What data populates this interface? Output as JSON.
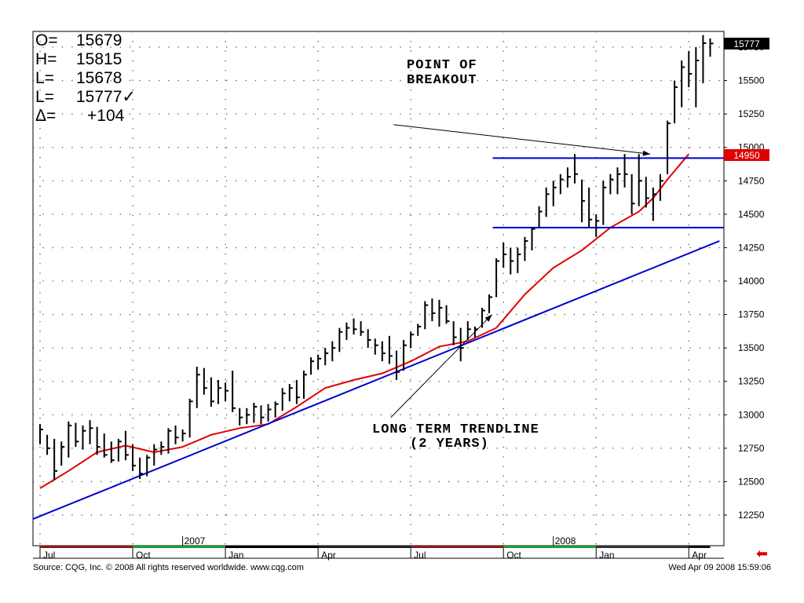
{
  "ohlc_readout": [
    {
      "label": "O=",
      "value": "15679"
    },
    {
      "label": "H=",
      "value": "15815"
    },
    {
      "label": "L=",
      "value": "15678"
    },
    {
      "label": "L=",
      "value": "15777✓"
    },
    {
      "label": "Δ=",
      "value": "+104"
    }
  ],
  "price_badges": {
    "last": "15777",
    "breakout": "14950"
  },
  "annotations": {
    "breakout_line1": "POINT OF",
    "breakout_line2": "BREAKOUT",
    "trend_line1": "LONG TERM TRENDLINE",
    "trend_line2": "(2 YEARS)"
  },
  "footer": {
    "source": "Source: CQG, Inc. © 2008 All rights reserved worldwide. www.cqg.com",
    "timestamp": "Wed Apr 09 2008 15:59:06"
  },
  "colors": {
    "bars": "#000000",
    "moving_average": "#e00000",
    "trendline": "#0000cc",
    "resistance": "#0000cc",
    "badge_breakout": "#e00000",
    "badge_last": "#000000",
    "nav_arrow": "#e00000"
  },
  "chart_data": {
    "type": "ohlc",
    "ylim": [
      12000,
      15950
    ],
    "grid": true,
    "price_axis_side": "right",
    "y_ticks": [
      12250,
      12500,
      12750,
      13000,
      13250,
      13500,
      13750,
      14000,
      14250,
      14500,
      14750,
      15000,
      15250,
      15500,
      15750
    ],
    "x_ticks": [
      {
        "label": "Jul",
        "week": 0
      },
      {
        "label": "Oct",
        "week": 13
      },
      {
        "label": "2007",
        "week": 20,
        "year": true
      },
      {
        "label": "Jan",
        "week": 26
      },
      {
        "label": "Apr",
        "week": 39
      },
      {
        "label": "Jul",
        "week": 52
      },
      {
        "label": "Oct",
        "week": 65
      },
      {
        "label": "2008",
        "week": 72,
        "year": true
      },
      {
        "label": "Jan",
        "week": 78
      },
      {
        "label": "Apr",
        "week": 91
      }
    ],
    "quarter_bands": [
      {
        "start": 0,
        "end": 13,
        "color": "#8b1a1a"
      },
      {
        "start": 13,
        "end": 26,
        "color": "#1a9e3a"
      },
      {
        "start": 26,
        "end": 39,
        "color": "#000000"
      },
      {
        "start": 39,
        "end": 52,
        "color": "#222222"
      },
      {
        "start": 52,
        "end": 65,
        "color": "#8b1a1a"
      },
      {
        "start": 65,
        "end": 78,
        "color": "#1a9e3a"
      },
      {
        "start": 78,
        "end": 91,
        "color": "#333333"
      },
      {
        "start": 91,
        "end": 94,
        "color": "#111111"
      }
    ],
    "weekly_bars": [
      {
        "h": 12930,
        "l": 12780,
        "c": 12890
      },
      {
        "h": 12850,
        "l": 12700,
        "c": 12750
      },
      {
        "h": 12820,
        "l": 12510,
        "c": 12580
      },
      {
        "h": 12800,
        "l": 12620,
        "c": 12760
      },
      {
        "h": 12950,
        "l": 12680,
        "c": 12920
      },
      {
        "h": 12940,
        "l": 12760,
        "c": 12800
      },
      {
        "h": 12920,
        "l": 12740,
        "c": 12880
      },
      {
        "h": 12960,
        "l": 12780,
        "c": 12900
      },
      {
        "h": 12910,
        "l": 12700,
        "c": 12760
      },
      {
        "h": 12860,
        "l": 12680,
        "c": 12700
      },
      {
        "h": 12800,
        "l": 12640,
        "c": 12660
      },
      {
        "h": 12820,
        "l": 12650,
        "c": 12800
      },
      {
        "h": 12880,
        "l": 12660,
        "c": 12700
      },
      {
        "h": 12780,
        "l": 12580,
        "c": 12620
      },
      {
        "h": 12680,
        "l": 12520,
        "c": 12560
      },
      {
        "h": 12700,
        "l": 12540,
        "c": 12680
      },
      {
        "h": 12780,
        "l": 12620,
        "c": 12740
      },
      {
        "h": 12800,
        "l": 12700,
        "c": 12760
      },
      {
        "h": 12900,
        "l": 12710,
        "c": 12880
      },
      {
        "h": 12920,
        "l": 12780,
        "c": 12830
      },
      {
        "h": 12890,
        "l": 12800,
        "c": 12860
      },
      {
        "h": 13120,
        "l": 12830,
        "c": 13100
      },
      {
        "h": 13360,
        "l": 13050,
        "c": 13300
      },
      {
        "h": 13350,
        "l": 13150,
        "c": 13200
      },
      {
        "h": 13280,
        "l": 13060,
        "c": 13100
      },
      {
        "h": 13260,
        "l": 13080,
        "c": 13200
      },
      {
        "h": 13240,
        "l": 13100,
        "c": 13180
      },
      {
        "h": 13330,
        "l": 13020,
        "c": 13050
      },
      {
        "h": 13050,
        "l": 12920,
        "c": 12980
      },
      {
        "h": 13050,
        "l": 12930,
        "c": 13000
      },
      {
        "h": 13090,
        "l": 12940,
        "c": 13060
      },
      {
        "h": 13070,
        "l": 12930,
        "c": 12980
      },
      {
        "h": 13080,
        "l": 12950,
        "c": 13040
      },
      {
        "h": 13100,
        "l": 12980,
        "c": 13080
      },
      {
        "h": 13200,
        "l": 13030,
        "c": 13160
      },
      {
        "h": 13230,
        "l": 13100,
        "c": 13200
      },
      {
        "h": 13260,
        "l": 13080,
        "c": 13130
      },
      {
        "h": 13330,
        "l": 13120,
        "c": 13300
      },
      {
        "h": 13430,
        "l": 13300,
        "c": 13400
      },
      {
        "h": 13450,
        "l": 13340,
        "c": 13420
      },
      {
        "h": 13500,
        "l": 13370,
        "c": 13460
      },
      {
        "h": 13550,
        "l": 13400,
        "c": 13500
      },
      {
        "h": 13650,
        "l": 13470,
        "c": 13620
      },
      {
        "h": 13690,
        "l": 13560,
        "c": 13650
      },
      {
        "h": 13720,
        "l": 13600,
        "c": 13640
      },
      {
        "h": 13700,
        "l": 13590,
        "c": 13620
      },
      {
        "h": 13640,
        "l": 13500,
        "c": 13560
      },
      {
        "h": 13570,
        "l": 13450,
        "c": 13520
      },
      {
        "h": 13550,
        "l": 13400,
        "c": 13460
      },
      {
        "h": 13590,
        "l": 13380,
        "c": 13440
      },
      {
        "h": 13480,
        "l": 13260,
        "c": 13320
      },
      {
        "h": 13560,
        "l": 13330,
        "c": 13520
      },
      {
        "h": 13620,
        "l": 13500,
        "c": 13600
      },
      {
        "h": 13680,
        "l": 13590,
        "c": 13660
      },
      {
        "h": 13850,
        "l": 13640,
        "c": 13820
      },
      {
        "h": 13870,
        "l": 13700,
        "c": 13760
      },
      {
        "h": 13860,
        "l": 13660,
        "c": 13800
      },
      {
        "h": 13820,
        "l": 13680,
        "c": 13700
      },
      {
        "h": 13700,
        "l": 13520,
        "c": 13580
      },
      {
        "h": 13650,
        "l": 13400,
        "c": 13500
      },
      {
        "h": 13700,
        "l": 13560,
        "c": 13640
      },
      {
        "h": 13660,
        "l": 13580,
        "c": 13640
      },
      {
        "h": 13800,
        "l": 13650,
        "c": 13780
      },
      {
        "h": 13900,
        "l": 13760,
        "c": 13880
      },
      {
        "h": 14170,
        "l": 13880,
        "c": 14150
      },
      {
        "h": 14290,
        "l": 14100,
        "c": 14200
      },
      {
        "h": 14250,
        "l": 14050,
        "c": 14150
      },
      {
        "h": 14250,
        "l": 14060,
        "c": 14200
      },
      {
        "h": 14330,
        "l": 14150,
        "c": 14300
      },
      {
        "h": 14400,
        "l": 14230,
        "c": 14390
      },
      {
        "h": 14560,
        "l": 14400,
        "c": 14520
      },
      {
        "h": 14700,
        "l": 14480,
        "c": 14650
      },
      {
        "h": 14750,
        "l": 14560,
        "c": 14700
      },
      {
        "h": 14800,
        "l": 14650,
        "c": 14760
      },
      {
        "h": 14850,
        "l": 14700,
        "c": 14780
      },
      {
        "h": 14950,
        "l": 14730,
        "c": 14800
      },
      {
        "h": 14760,
        "l": 14440,
        "c": 14600
      },
      {
        "h": 14700,
        "l": 14400,
        "c": 14460
      },
      {
        "h": 14500,
        "l": 14330,
        "c": 14450
      },
      {
        "h": 14750,
        "l": 14420,
        "c": 14700
      },
      {
        "h": 14800,
        "l": 14650,
        "c": 14760
      },
      {
        "h": 14850,
        "l": 14650,
        "c": 14800
      },
      {
        "h": 14950,
        "l": 14700,
        "c": 14800
      },
      {
        "h": 14800,
        "l": 14500,
        "c": 14580
      },
      {
        "h": 14950,
        "l": 14560,
        "c": 14750
      },
      {
        "h": 14780,
        "l": 14550,
        "c": 14620
      },
      {
        "h": 14700,
        "l": 14450,
        "c": 14650
      },
      {
        "h": 14800,
        "l": 14600,
        "c": 14750
      },
      {
        "h": 15200,
        "l": 14800,
        "c": 15180
      },
      {
        "h": 15500,
        "l": 15180,
        "c": 15450
      },
      {
        "h": 15650,
        "l": 15300,
        "c": 15600
      },
      {
        "h": 15720,
        "l": 15450,
        "c": 15550
      },
      {
        "h": 15750,
        "l": 15300,
        "c": 15650
      },
      {
        "h": 15840,
        "l": 15480,
        "c": 15780
      },
      {
        "h": 15815,
        "l": 15678,
        "c": 15777
      }
    ],
    "moving_average": [
      [
        0,
        12450
      ],
      [
        4,
        12580
      ],
      [
        8,
        12720
      ],
      [
        12,
        12770
      ],
      [
        16,
        12720
      ],
      [
        20,
        12760
      ],
      [
        24,
        12850
      ],
      [
        28,
        12900
      ],
      [
        32,
        12930
      ],
      [
        36,
        13060
      ],
      [
        40,
        13200
      ],
      [
        44,
        13260
      ],
      [
        48,
        13310
      ],
      [
        52,
        13400
      ],
      [
        56,
        13510
      ],
      [
        60,
        13550
      ],
      [
        64,
        13650
      ],
      [
        68,
        13900
      ],
      [
        72,
        14100
      ],
      [
        76,
        14230
      ],
      [
        80,
        14400
      ],
      [
        84,
        14520
      ],
      [
        86,
        14620
      ],
      [
        88,
        14760
      ],
      [
        91,
        14950
      ]
    ],
    "trendline": {
      "from": [
        -1,
        12220
      ],
      "to": [
        95.3,
        14300
      ]
    },
    "resistance_lines": [
      {
        "price": 14920,
        "from": 63.5,
        "to": 96
      },
      {
        "price": 14400,
        "from": 63.5,
        "to": 96
      }
    ],
    "breakout_arrow": {
      "from": [
        49.6,
        15170
      ],
      "to": [
        85.6,
        14950
      ]
    },
    "trend_arrow": {
      "from": [
        49.2,
        12980
      ],
      "to": [
        63.4,
        13750
      ]
    }
  }
}
